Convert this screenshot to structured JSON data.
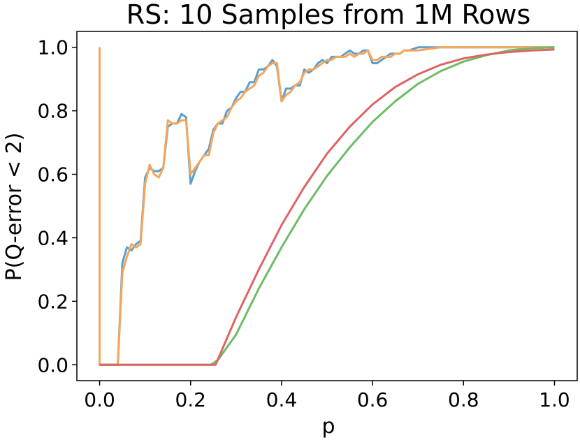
{
  "chart_data": {
    "type": "line",
    "title": "RS: 10 Samples from 1M Rows",
    "xlabel": "p",
    "ylabel": "P(Q-error < 2)",
    "xlim": [
      -0.05,
      1.05
    ],
    "ylim": [
      -0.05,
      1.05
    ],
    "xticks": [
      0.0,
      0.2,
      0.4,
      0.6,
      0.8,
      1.0
    ],
    "xtick_labels": [
      "0.0",
      "0.2",
      "0.4",
      "0.6",
      "0.8",
      "1.0"
    ],
    "yticks": [
      0.0,
      0.2,
      0.4,
      0.6,
      0.8,
      1.0
    ],
    "ytick_labels": [
      "0.0",
      "0.2",
      "0.4",
      "0.6",
      "0.8",
      "1.0"
    ],
    "grid": false,
    "legend": false,
    "series": [
      {
        "color": "#5b9fcf",
        "points": [
          [
            0.0,
            1.0
          ],
          [
            0.0,
            0.0
          ],
          [
            0.04,
            0.0
          ],
          [
            0.05,
            0.32
          ],
          [
            0.06,
            0.37
          ],
          [
            0.07,
            0.36
          ],
          [
            0.08,
            0.38
          ],
          [
            0.09,
            0.39
          ],
          [
            0.1,
            0.59
          ],
          [
            0.11,
            0.62
          ],
          [
            0.12,
            0.61
          ],
          [
            0.13,
            0.61
          ],
          [
            0.14,
            0.62
          ],
          [
            0.15,
            0.75
          ],
          [
            0.16,
            0.76
          ],
          [
            0.17,
            0.76
          ],
          [
            0.18,
            0.79
          ],
          [
            0.19,
            0.78
          ],
          [
            0.2,
            0.57
          ],
          [
            0.21,
            0.61
          ],
          [
            0.22,
            0.64
          ],
          [
            0.23,
            0.66
          ],
          [
            0.24,
            0.68
          ],
          [
            0.25,
            0.74
          ],
          [
            0.26,
            0.76
          ],
          [
            0.27,
            0.76
          ],
          [
            0.28,
            0.8
          ],
          [
            0.29,
            0.81
          ],
          [
            0.3,
            0.84
          ],
          [
            0.31,
            0.86
          ],
          [
            0.32,
            0.86
          ],
          [
            0.33,
            0.89
          ],
          [
            0.34,
            0.89
          ],
          [
            0.35,
            0.93
          ],
          [
            0.36,
            0.93
          ],
          [
            0.37,
            0.94
          ],
          [
            0.38,
            0.96
          ],
          [
            0.39,
            0.94
          ],
          [
            0.4,
            0.83
          ],
          [
            0.41,
            0.87
          ],
          [
            0.42,
            0.87
          ],
          [
            0.43,
            0.88
          ],
          [
            0.44,
            0.88
          ],
          [
            0.45,
            0.93
          ],
          [
            0.46,
            0.92
          ],
          [
            0.47,
            0.93
          ],
          [
            0.48,
            0.95
          ],
          [
            0.49,
            0.96
          ],
          [
            0.5,
            0.95
          ],
          [
            0.51,
            0.97
          ],
          [
            0.52,
            0.97
          ],
          [
            0.53,
            0.97
          ],
          [
            0.54,
            0.98
          ],
          [
            0.55,
            0.99
          ],
          [
            0.56,
            0.98
          ],
          [
            0.57,
            0.98
          ],
          [
            0.58,
            0.99
          ],
          [
            0.59,
            0.99
          ],
          [
            0.6,
            0.95
          ],
          [
            0.61,
            0.95
          ],
          [
            0.62,
            0.96
          ],
          [
            0.63,
            0.97
          ],
          [
            0.64,
            0.98
          ],
          [
            0.65,
            0.98
          ],
          [
            0.66,
            0.98
          ],
          [
            0.67,
            0.99
          ],
          [
            0.68,
            0.99
          ],
          [
            0.7,
            1.0
          ],
          [
            0.75,
            1.0
          ],
          [
            0.8,
            1.0
          ],
          [
            0.85,
            1.0
          ],
          [
            0.9,
            1.0
          ],
          [
            1.0,
            1.0
          ]
        ]
      },
      {
        "color": "#f5a65b",
        "points": [
          [
            0.0,
            1.0
          ],
          [
            0.0,
            0.0
          ],
          [
            0.04,
            0.0
          ],
          [
            0.05,
            0.29
          ],
          [
            0.06,
            0.34
          ],
          [
            0.07,
            0.38
          ],
          [
            0.08,
            0.37
          ],
          [
            0.09,
            0.38
          ],
          [
            0.1,
            0.57
          ],
          [
            0.11,
            0.63
          ],
          [
            0.12,
            0.6
          ],
          [
            0.13,
            0.59
          ],
          [
            0.14,
            0.62
          ],
          [
            0.15,
            0.77
          ],
          [
            0.16,
            0.76
          ],
          [
            0.17,
            0.76
          ],
          [
            0.18,
            0.77
          ],
          [
            0.19,
            0.77
          ],
          [
            0.2,
            0.6
          ],
          [
            0.21,
            0.62
          ],
          [
            0.22,
            0.64
          ],
          [
            0.23,
            0.66
          ],
          [
            0.24,
            0.66
          ],
          [
            0.25,
            0.73
          ],
          [
            0.26,
            0.76
          ],
          [
            0.27,
            0.77
          ],
          [
            0.28,
            0.78
          ],
          [
            0.29,
            0.81
          ],
          [
            0.3,
            0.83
          ],
          [
            0.31,
            0.84
          ],
          [
            0.32,
            0.86
          ],
          [
            0.33,
            0.87
          ],
          [
            0.34,
            0.88
          ],
          [
            0.35,
            0.91
          ],
          [
            0.36,
            0.92
          ],
          [
            0.37,
            0.94
          ],
          [
            0.38,
            0.95
          ],
          [
            0.39,
            0.95
          ],
          [
            0.4,
            0.83
          ],
          [
            0.41,
            0.85
          ],
          [
            0.42,
            0.86
          ],
          [
            0.43,
            0.88
          ],
          [
            0.44,
            0.89
          ],
          [
            0.45,
            0.92
          ],
          [
            0.46,
            0.93
          ],
          [
            0.47,
            0.93
          ],
          [
            0.48,
            0.94
          ],
          [
            0.49,
            0.95
          ],
          [
            0.5,
            0.96
          ],
          [
            0.51,
            0.96
          ],
          [
            0.52,
            0.97
          ],
          [
            0.53,
            0.97
          ],
          [
            0.54,
            0.97
          ],
          [
            0.55,
            0.98
          ],
          [
            0.56,
            0.97
          ],
          [
            0.57,
            0.98
          ],
          [
            0.58,
            0.98
          ],
          [
            0.59,
            0.99
          ],
          [
            0.6,
            0.96
          ],
          [
            0.61,
            0.96
          ],
          [
            0.62,
            0.97
          ],
          [
            0.63,
            0.97
          ],
          [
            0.64,
            0.97
          ],
          [
            0.65,
            0.98
          ],
          [
            0.66,
            0.98
          ],
          [
            0.67,
            0.99
          ],
          [
            0.68,
            0.99
          ],
          [
            0.7,
            0.99
          ],
          [
            0.75,
            1.0
          ],
          [
            0.8,
            1.0
          ],
          [
            0.85,
            1.0
          ],
          [
            0.9,
            1.0
          ],
          [
            1.0,
            1.0
          ]
        ]
      },
      {
        "color": "#6cbd64",
        "points": [
          [
            0.0,
            0.0
          ],
          [
            0.245,
            0.0
          ],
          [
            0.26,
            0.015
          ],
          [
            0.3,
            0.095
          ],
          [
            0.35,
            0.24
          ],
          [
            0.4,
            0.37
          ],
          [
            0.45,
            0.49
          ],
          [
            0.5,
            0.595
          ],
          [
            0.55,
            0.685
          ],
          [
            0.6,
            0.765
          ],
          [
            0.65,
            0.83
          ],
          [
            0.7,
            0.885
          ],
          [
            0.75,
            0.925
          ],
          [
            0.8,
            0.955
          ],
          [
            0.85,
            0.975
          ],
          [
            0.9,
            0.99
          ],
          [
            0.95,
            0.997
          ],
          [
            1.0,
            1.0
          ]
        ]
      },
      {
        "color": "#de6464",
        "points": [
          [
            0.0,
            0.0
          ],
          [
            0.255,
            0.0
          ],
          [
            0.3,
            0.15
          ],
          [
            0.35,
            0.3
          ],
          [
            0.4,
            0.44
          ],
          [
            0.45,
            0.56
          ],
          [
            0.5,
            0.665
          ],
          [
            0.55,
            0.75
          ],
          [
            0.6,
            0.82
          ],
          [
            0.65,
            0.875
          ],
          [
            0.7,
            0.915
          ],
          [
            0.75,
            0.945
          ],
          [
            0.8,
            0.965
          ],
          [
            0.85,
            0.977
          ],
          [
            0.9,
            0.985
          ],
          [
            0.95,
            0.99
          ],
          [
            1.0,
            0.993
          ]
        ]
      }
    ]
  }
}
